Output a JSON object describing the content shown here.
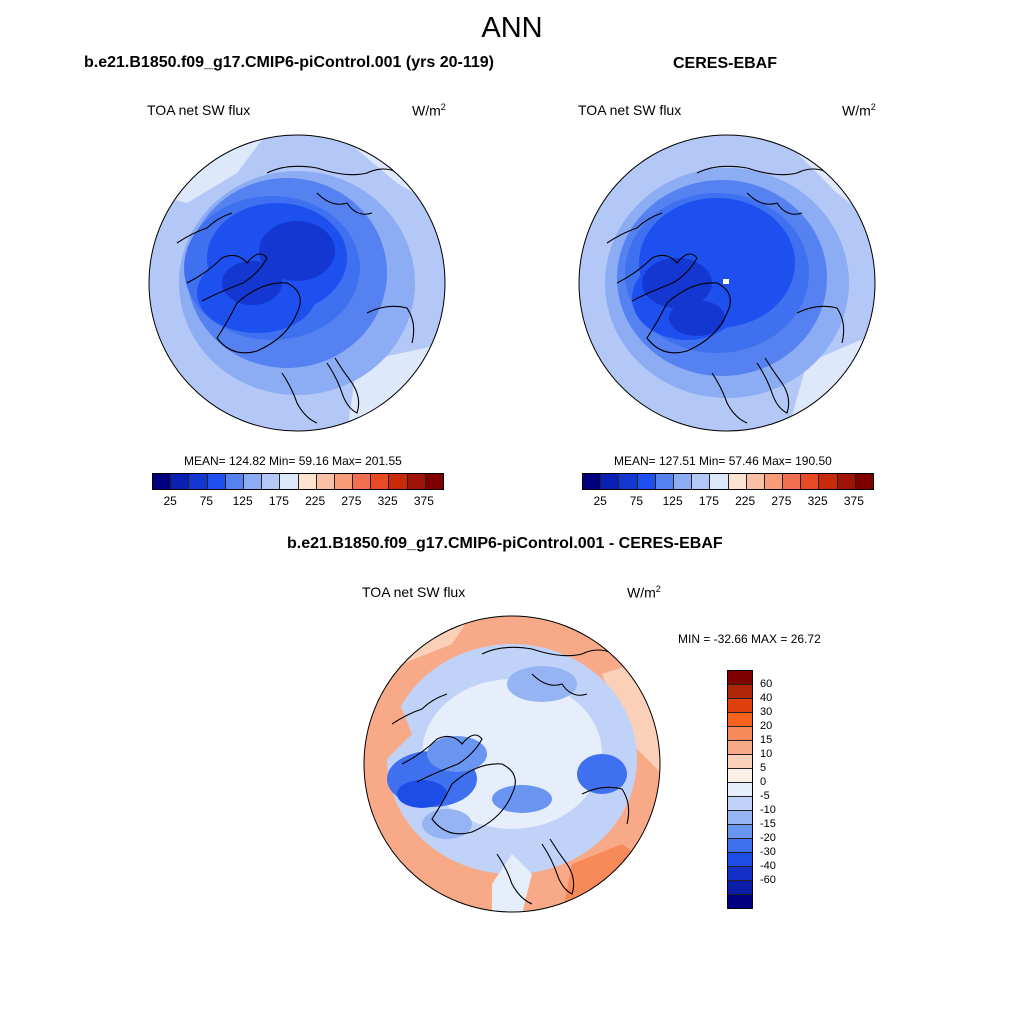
{
  "main_title": "ANN",
  "top_left": {
    "title": "b.e21.B1850.f09_g17.CMIP6-piControl.001 (yrs 20-119)",
    "variable": "TOA net SW flux",
    "units": "W/m",
    "units_sup": "2",
    "stats": "MEAN= 124.82  Min=  59.16  Max= 201.55"
  },
  "top_right": {
    "title": "CERES-EBAF",
    "variable": "TOA net SW flux",
    "units": "W/m",
    "units_sup": "2",
    "stats": "MEAN= 127.51  Min=  57.46  Max= 190.50"
  },
  "bottom": {
    "title": "b.e21.B1850.f09_g17.CMIP6-piControl.001 - CERES-EBAF",
    "variable": "TOA net SW flux",
    "units": "W/m",
    "units_sup": "2",
    "stats": "MIN = -32.66 MAX =  26.72"
  },
  "colorbar_abs": {
    "colors": [
      "#000080",
      "#0a1fb4",
      "#1437d2",
      "#1e50f0",
      "#5582f0",
      "#8cacf4",
      "#b4c8f8",
      "#dde8fb",
      "#fbe3d0",
      "#f8c0a4",
      "#f79c78",
      "#f27050",
      "#e84a24",
      "#c82a0a",
      "#a01408",
      "#800000"
    ],
    "labels": [
      "25",
      "75",
      "125",
      "175",
      "225",
      "275",
      "325",
      "375"
    ]
  },
  "colorbar_diff": {
    "colors": [
      "#800000",
      "#b02408",
      "#e0410c",
      "#f8641e",
      "#f88a5a",
      "#f8aa88",
      "#fbd0b8",
      "#fdf0e6",
      "#e6eefc",
      "#c0d2f8",
      "#96b4f4",
      "#6a96f2",
      "#3e70f0",
      "#1e4ce6",
      "#1430c8",
      "#0a1ca8",
      "#000080"
    ],
    "labels": [
      "60",
      "40",
      "30",
      "20",
      "15",
      "10",
      "5",
      "0",
      "-5",
      "-10",
      "-15",
      "-20",
      "-30",
      "-40",
      "-60"
    ]
  }
}
